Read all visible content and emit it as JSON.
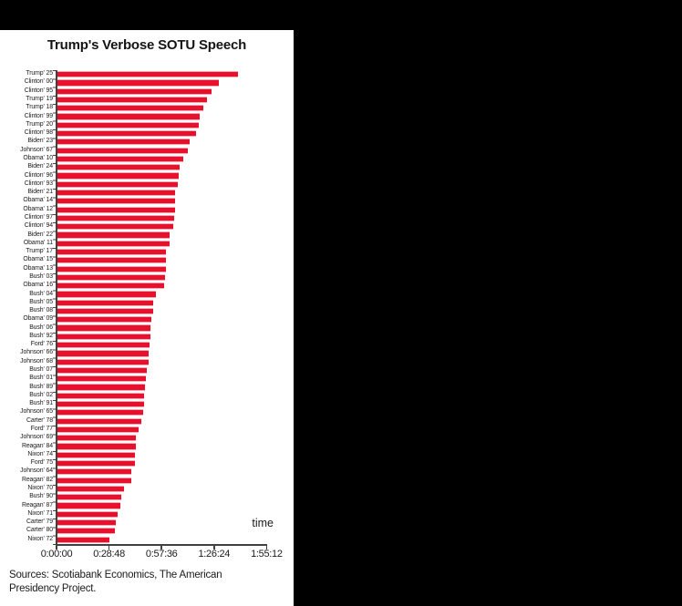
{
  "window": {
    "background_color": "#000000",
    "panel_background_color": "#ffffff"
  },
  "chart": {
    "title": "Trump's Verbose SOTU Speech",
    "xlabel": "time",
    "sources_line1": "Sources: Scotiabank Economics, The American",
    "sources_line2": "Presidency Project.",
    "bar_color": "#e8112d",
    "axis_color": "#404040"
  },
  "chart_data": {
    "type": "bar",
    "orientation": "horizontal",
    "title": "Trump's Verbose SOTU Speech",
    "xlabel": "time",
    "legend": false,
    "grid": false,
    "sort": "descending",
    "x_ticks": [
      "0:00:00",
      "0:28:48",
      "0:57:36",
      "1:26:24",
      "1:55:12"
    ],
    "x_tick_seconds": [
      0,
      1728,
      3456,
      5184,
      6912
    ],
    "xlim_seconds": [
      0,
      6912
    ],
    "value_unit": "h:mm:ss speech duration",
    "rows": [
      {
        "label": "Trump' 25",
        "duration": "1:39:32",
        "seconds": 5972
      },
      {
        "label": "Clinton' 00",
        "duration": "1:28:49",
        "seconds": 5329
      },
      {
        "label": "Clinton' 95",
        "duration": "1:24:58",
        "seconds": 5098
      },
      {
        "label": "Trump' 19",
        "duration": "1:22:24",
        "seconds": 4944
      },
      {
        "label": "Trump' 18",
        "duration": "1:20:31",
        "seconds": 4831
      },
      {
        "label": "Clinton' 99",
        "duration": "1:18:41",
        "seconds": 4721
      },
      {
        "label": "Trump' 20",
        "duration": "1:18:08",
        "seconds": 4688
      },
      {
        "label": "Clinton' 98",
        "duration": "1:16:43",
        "seconds": 4603
      },
      {
        "label": "Biden' 23",
        "duration": "1:13:00",
        "seconds": 4380
      },
      {
        "label": "Johnson' 67",
        "duration": "1:11:45",
        "seconds": 4305
      },
      {
        "label": "Obama' 10",
        "duration": "1:09:26",
        "seconds": 4166
      },
      {
        "label": "Biden' 24",
        "duration": "1:07:30",
        "seconds": 4050
      },
      {
        "label": "Clinton' 96",
        "duration": "1:07:00",
        "seconds": 4020
      },
      {
        "label": "Clinton' 93",
        "duration": "1:06:30",
        "seconds": 3990
      },
      {
        "label": "Biden' 21",
        "duration": "1:05:09",
        "seconds": 3909
      },
      {
        "label": "Obama' 14",
        "duration": "1:05:00",
        "seconds": 3900
      },
      {
        "label": "Obama' 12",
        "duration": "1:04:50",
        "seconds": 3890
      },
      {
        "label": "Clinton' 97",
        "duration": "1:04:30",
        "seconds": 3870
      },
      {
        "label": "Clinton' 94",
        "duration": "1:04:00",
        "seconds": 3840
      },
      {
        "label": "Biden' 22",
        "duration": "1:02:00",
        "seconds": 3720
      },
      {
        "label": "Obama' 11",
        "duration": "1:01:46",
        "seconds": 3706
      },
      {
        "label": "Trump' 17",
        "duration": "1:00:09",
        "seconds": 3609
      },
      {
        "label": "Obama' 15",
        "duration": "1:00:00",
        "seconds": 3600
      },
      {
        "label": "Obama' 13",
        "duration": "0:59:55",
        "seconds": 3595
      },
      {
        "label": "Bush' 03",
        "duration": "0:59:40",
        "seconds": 3580
      },
      {
        "label": "Obama' 16",
        "duration": "0:58:49",
        "seconds": 3529
      },
      {
        "label": "Bush' 04",
        "duration": "0:54:18",
        "seconds": 3258
      },
      {
        "label": "Bush' 05",
        "duration": "0:53:05",
        "seconds": 3185
      },
      {
        "label": "Bush' 08",
        "duration": "0:53:00",
        "seconds": 3180
      },
      {
        "label": "Obama' 09",
        "duration": "0:51:48",
        "seconds": 3108
      },
      {
        "label": "Bush' 06",
        "duration": "0:51:30",
        "seconds": 3090
      },
      {
        "label": "Bush' 92",
        "duration": "0:51:15",
        "seconds": 3075
      },
      {
        "label": "Ford' 76",
        "duration": "0:50:50",
        "seconds": 3050
      },
      {
        "label": "Johnson' 66",
        "duration": "0:50:40",
        "seconds": 3040
      },
      {
        "label": "Johnson' 68",
        "duration": "0:50:20",
        "seconds": 3020
      },
      {
        "label": "Bush' 07",
        "duration": "0:49:25",
        "seconds": 2965
      },
      {
        "label": "Bush' 01",
        "duration": "0:49:10",
        "seconds": 2950
      },
      {
        "label": "Bush' 89",
        "duration": "0:48:20",
        "seconds": 2900
      },
      {
        "label": "Bush' 02",
        "duration": "0:48:06",
        "seconds": 2886
      },
      {
        "label": "Bush' 91",
        "duration": "0:47:45",
        "seconds": 2865
      },
      {
        "label": "Johnson' 65",
        "duration": "0:47:30",
        "seconds": 2850
      },
      {
        "label": "Carter' 78",
        "duration": "0:46:35",
        "seconds": 2795
      },
      {
        "label": "Ford' 77",
        "duration": "0:45:00",
        "seconds": 2700
      },
      {
        "label": "Johnson' 69",
        "duration": "0:43:35",
        "seconds": 2615
      },
      {
        "label": "Reagan' 84",
        "duration": "0:43:20",
        "seconds": 2600
      },
      {
        "label": "Nixon' 74",
        "duration": "0:43:10",
        "seconds": 2590
      },
      {
        "label": "Ford' 75",
        "duration": "0:43:00",
        "seconds": 2580
      },
      {
        "label": "Johnson' 64",
        "duration": "0:41:05",
        "seconds": 2465
      },
      {
        "label": "Reagan' 82",
        "duration": "0:40:50",
        "seconds": 2450
      },
      {
        "label": "Nixon' 70",
        "duration": "0:36:57",
        "seconds": 2217
      },
      {
        "label": "Bush' 90",
        "duration": "0:35:28",
        "seconds": 2128
      },
      {
        "label": "Reagan' 87",
        "duration": "0:34:49",
        "seconds": 2089
      },
      {
        "label": "Nixon' 71",
        "duration": "0:33:37",
        "seconds": 2017
      },
      {
        "label": "Carter' 79",
        "duration": "0:32:37",
        "seconds": 1957
      },
      {
        "label": "Carter' 80",
        "duration": "0:31:59",
        "seconds": 1919
      },
      {
        "label": "Nixon' 72",
        "duration": "0:28:55",
        "seconds": 1735
      }
    ]
  }
}
